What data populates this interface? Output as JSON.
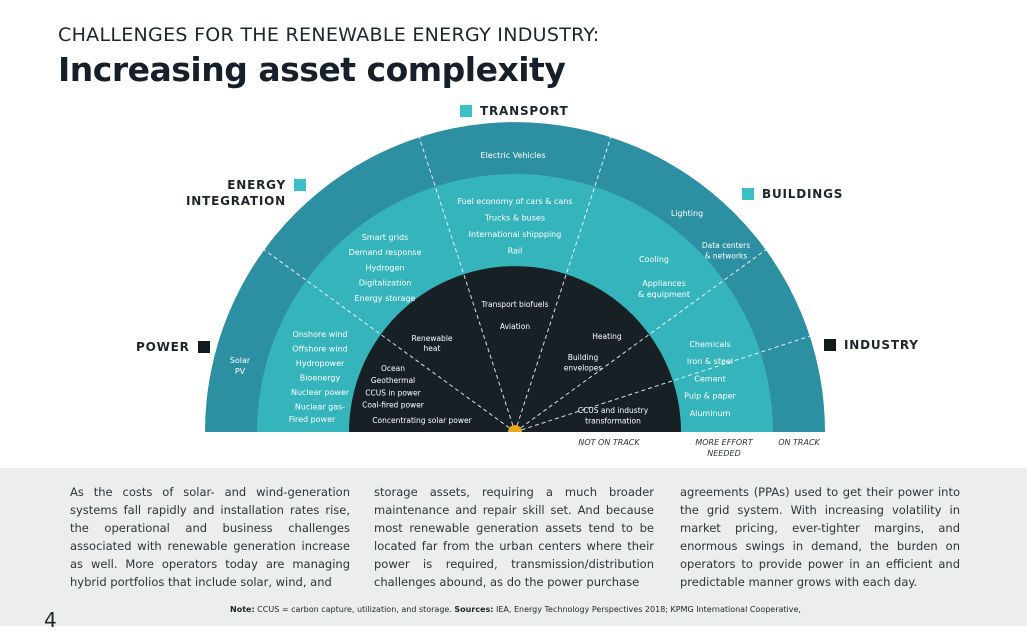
{
  "header": {
    "kicker": "CHALLENGES FOR THE RENEWABLE ENERGY INDUSTRY:",
    "title": "Increasing asset complexity"
  },
  "colors": {
    "outer": "#2c8fa2",
    "middle": "#36b4bb",
    "inner": "#172025",
    "legend_teal": "#3bbfc6",
    "legend_dark": "#121a1e",
    "center_dot": "#e8a81c"
  },
  "legend": {
    "transport": "TRANSPORT",
    "energy_integration_1": "ENERGY",
    "energy_integration_2": "INTEGRATION",
    "buildings": "BUILDINGS",
    "power": "POWER",
    "industry": "INDUSTRY"
  },
  "chart_data": {
    "type": "semicircle-diagram",
    "rings": [
      "not on track",
      "more effort needed",
      "on track"
    ],
    "ring_axis_labels": [
      "NOT ON TRACK",
      "MORE EFFORT",
      "NEEDED",
      "ON TRACK"
    ],
    "sectors": {
      "power": {
        "on_track": [
          "Solar",
          "PV"
        ],
        "more_effort": [
          "Onshore wind",
          "Offshore wind",
          "Hydropower",
          "Bioenergy",
          "Nuclear power",
          "Nuclear gas-",
          "Fired power"
        ],
        "not_on_track": [
          "Ocean",
          "Geothermal",
          "CCUS in power",
          "Coal-fired power",
          "Concentrating solar power"
        ]
      },
      "energy_integration": {
        "more_effort": [
          "Smart grids",
          "Demand response",
          "Hydrogen",
          "Digitalization",
          "Energy storage"
        ],
        "not_on_track": [
          "Renewable",
          "heat"
        ]
      },
      "transport": {
        "on_track": [
          "Electric Vehicles"
        ],
        "more_effort": [
          "Fuel economy of cars & cans",
          "Trucks & buses",
          "International shippping",
          "Rail"
        ],
        "not_on_track": [
          "Transport biofuels",
          "Aviation"
        ]
      },
      "buildings": {
        "on_track": [
          "Lighting",
          "Data centers",
          "& networks"
        ],
        "more_effort": [
          "Cooling",
          "Appliances",
          "& equipment"
        ],
        "not_on_track": [
          "Heating",
          "Building",
          "envelopes"
        ]
      },
      "industry": {
        "more_effort": [
          "Chemicals",
          "Iron & steel",
          "Cement",
          "Pulp & paper",
          "Aluminum"
        ],
        "not_on_track": [
          "CCUS and industry",
          "transformation"
        ]
      }
    }
  },
  "body": {
    "col1": "As the costs of solar- and wind-generation systems fall rapidly and installation rates rise, the operational and business challenges associated with renewable generation increase as well. More operators today are managing hybrid portfolios that include solar, wind, and",
    "col2": "storage assets, requiring a much broader maintenance and repair skill set. And because most renewable generation assets tend to be located far from the urban centers where their power is required, transmission/distribution challenges abound, as do the power purchase",
    "col3": "agreements (PPAs) used to get their power into the grid system. With increasing volatility in market pricing, ever-tighter margins, and enormous swings in demand, the burden on operators to provide power in an efficient and predictable manner grows with each day."
  },
  "footer": {
    "note_label": "Note:",
    "note_text": " CCUS = carbon capture, utilization, and storage. ",
    "sources_label": "Sources:",
    "sources_text": " IEA, Energy Technology Perspectives 2018; KPMG International Cooperative,",
    "page_mark": "4"
  }
}
